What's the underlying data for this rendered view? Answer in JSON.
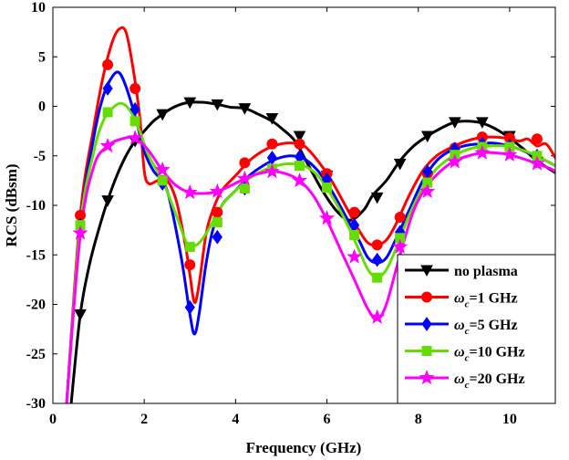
{
  "chart_data": {
    "type": "line",
    "title": "",
    "xlabel": "Frequency (GHz)",
    "ylabel": "RCS (dBsm)",
    "xlim": [
      0,
      11
    ],
    "ylim": [
      -30,
      10
    ],
    "xticks": [
      0,
      2,
      4,
      6,
      8,
      10
    ],
    "yticks": [
      10,
      5,
      0,
      -5,
      -10,
      -15,
      -20,
      -25,
      -30
    ],
    "legend_position": "bottom-right",
    "series": [
      {
        "name": "no plasma",
        "legend_label": "no plasma",
        "color": "#000000",
        "marker": "triangle-down",
        "x": [
          0.4,
          0.6,
          0.8,
          1.0,
          1.2,
          1.4,
          1.6,
          1.8,
          2.0,
          2.2,
          2.4,
          2.6,
          2.8,
          3.0,
          3.3,
          3.6,
          3.9,
          4.2,
          4.5,
          4.8,
          5.0,
          5.3,
          5.6,
          5.9,
          6.2,
          6.5,
          6.8,
          7.0,
          7.3,
          7.6,
          7.9,
          8.2,
          8.5,
          8.8,
          9.1,
          9.4,
          9.7,
          10.0,
          10.3,
          10.6,
          11.0
        ],
        "y": [
          -30,
          -21,
          -16,
          -12.5,
          -9.5,
          -7,
          -5,
          -3.5,
          -2.5,
          -1.5,
          -0.8,
          -0.2,
          0.2,
          0.4,
          0.4,
          0.2,
          -0.1,
          -0.2,
          -0.8,
          -1.5,
          -2.2,
          -3.5,
          -6,
          -8.5,
          -10.5,
          -11.5,
          -10.5,
          -9,
          -7.5,
          -5.5,
          -4,
          -3,
          -2.2,
          -1.6,
          -1.5,
          -1.7,
          -2.3,
          -3.2,
          -4.3,
          -5.5,
          -6.7
        ],
        "marker_x": [
          0.6,
          1.2,
          1.8,
          2.4,
          3.0,
          3.6,
          4.2,
          4.8,
          5.4,
          6.0,
          6.6,
          7.1,
          7.6,
          8.2,
          8.8,
          9.4,
          10.0,
          10.6
        ],
        "marker_y": [
          -21,
          -9.5,
          -3.5,
          -0.8,
          0.4,
          0.2,
          -0.2,
          -1.2,
          -3,
          -7,
          -11,
          -9.2,
          -5.8,
          -3,
          -1.6,
          -1.6,
          -3,
          -5.6
        ]
      },
      {
        "name": "ωc=1 GHz",
        "legend_label": "ω",
        "legend_sub": "c",
        "legend_suffix": "=1 GHz",
        "color": "#ff0000",
        "marker": "circle",
        "x": [
          0.3,
          0.6,
          0.9,
          1.1,
          1.3,
          1.45,
          1.6,
          1.75,
          1.9,
          2.0,
          2.1,
          2.3,
          2.5,
          2.7,
          2.9,
          3.0,
          3.1,
          3.2,
          3.35,
          3.5,
          3.7,
          4.0,
          4.3,
          4.6,
          4.9,
          5.2,
          5.5,
          5.8,
          6.1,
          6.4,
          6.7,
          6.9,
          7.1,
          7.3,
          7.5,
          7.8,
          8.1,
          8.4,
          8.7,
          9.0,
          9.3,
          9.6,
          9.9,
          10.2,
          10.4,
          10.6,
          10.8,
          11.0
        ],
        "y": [
          -30,
          -11,
          -2,
          3,
          6.5,
          7.8,
          7.5,
          4,
          -1,
          -6.5,
          -7.8,
          -7.5,
          -7.5,
          -9.5,
          -14,
          -17,
          -19.8,
          -18,
          -13,
          -10.5,
          -8.5,
          -7,
          -5.5,
          -4.5,
          -3.9,
          -3.7,
          -4,
          -5.5,
          -7.5,
          -10,
          -12.5,
          -13.8,
          -14,
          -13.5,
          -12,
          -9,
          -6.5,
          -5,
          -4.2,
          -3.6,
          -3.2,
          -3.1,
          -3.2,
          -3.5,
          -3.3,
          -4,
          -3.8,
          -5.2
        ],
        "marker_x": [
          0.6,
          1.2,
          1.8,
          2.4,
          3.0,
          3.6,
          4.2,
          4.8,
          5.4,
          6.0,
          6.6,
          7.1,
          7.6,
          8.2,
          8.8,
          9.4,
          10.0,
          10.6
        ],
        "marker_y": [
          -11,
          4.2,
          1.8,
          -7.5,
          -16,
          -10.7,
          -5.7,
          -3.8,
          -3.8,
          -6.8,
          -10.7,
          -14,
          -11.2,
          -6.8,
          -4.2,
          -3.1,
          -3.2,
          -3.3
        ]
      },
      {
        "name": "ωc=5 GHz",
        "legend_label": "ω",
        "legend_sub": "c",
        "legend_suffix": "=5 GHz",
        "color": "#0000ff",
        "marker": "diamond",
        "x": [
          0.3,
          0.6,
          0.9,
          1.1,
          1.3,
          1.45,
          1.6,
          1.8,
          2.0,
          2.2,
          2.5,
          2.8,
          3.0,
          3.1,
          3.2,
          3.35,
          3.5,
          3.7,
          4.0,
          4.3,
          4.6,
          4.9,
          5.2,
          5.5,
          5.8,
          6.1,
          6.4,
          6.7,
          6.9,
          7.1,
          7.3,
          7.5,
          7.8,
          8.1,
          8.4,
          8.7,
          9.0,
          9.3,
          9.6,
          9.9,
          10.2,
          10.5,
          10.8,
          11.0
        ],
        "y": [
          -30,
          -12,
          -3,
          1,
          3,
          3.4,
          2,
          -1,
          -4.5,
          -6.5,
          -8.5,
          -15,
          -21,
          -23,
          -21,
          -16,
          -12.5,
          -10,
          -8.5,
          -7,
          -6,
          -5.3,
          -5,
          -5.3,
          -6.5,
          -8.5,
          -11,
          -13.5,
          -15.3,
          -15.8,
          -15.3,
          -13.5,
          -10.5,
          -7.5,
          -5.5,
          -4.5,
          -4,
          -3.8,
          -3.7,
          -3.9,
          -4.3,
          -4.9,
          -5.5,
          -6
        ],
        "marker_x": [
          0.6,
          1.2,
          1.8,
          2.4,
          3.0,
          3.6,
          4.2,
          4.8,
          5.4,
          6.0,
          6.6,
          7.1,
          7.6,
          8.2,
          8.8,
          9.4,
          10.0,
          10.6
        ],
        "marker_y": [
          -12,
          1.8,
          -0.3,
          -7.8,
          -20.3,
          -13.2,
          -8.3,
          -5.2,
          -5.1,
          -7.4,
          -12,
          -15.5,
          -12.7,
          -6.6,
          -4.3,
          -3.8,
          -4,
          -5
        ]
      },
      {
        "name": "ωc=10 GHz",
        "legend_label": "ω",
        "legend_sub": "c",
        "legend_suffix": "=10 GHz",
        "color": "#66dd00",
        "marker": "square",
        "x": [
          0.3,
          0.6,
          0.9,
          1.1,
          1.3,
          1.5,
          1.7,
          1.9,
          2.1,
          2.4,
          2.7,
          2.9,
          3.0,
          3.2,
          3.4,
          3.7,
          4.0,
          4.3,
          4.6,
          4.9,
          5.2,
          5.5,
          5.8,
          6.1,
          6.4,
          6.7,
          6.9,
          7.1,
          7.3,
          7.5,
          7.8,
          8.1,
          8.4,
          8.7,
          9.0,
          9.3,
          9.6,
          9.9,
          10.2,
          10.5,
          10.8,
          11.0
        ],
        "y": [
          -30,
          -12,
          -4.5,
          -1.5,
          -0.2,
          0.3,
          -0.5,
          -2.5,
          -5,
          -7.5,
          -11,
          -13.5,
          -14.2,
          -13.8,
          -12.5,
          -10,
          -8.5,
          -7.3,
          -6.5,
          -6,
          -5.8,
          -6,
          -7,
          -9,
          -11.5,
          -14.5,
          -16.5,
          -17.3,
          -16.5,
          -14.5,
          -11,
          -8.2,
          -6.3,
          -5.2,
          -4.5,
          -4.1,
          -4,
          -4,
          -4.3,
          -4.8,
          -5.5,
          -6
        ],
        "marker_x": [
          0.6,
          1.2,
          1.8,
          2.4,
          3.0,
          3.6,
          4.2,
          4.8,
          5.4,
          6.0,
          6.6,
          7.1,
          7.6,
          8.2,
          8.8,
          9.4,
          10.0,
          10.6
        ],
        "marker_y": [
          -12,
          -0.6,
          -1.5,
          -7.5,
          -14.2,
          -11.7,
          -8.3,
          -6.3,
          -6,
          -8.2,
          -13,
          -17.3,
          -13.3,
          -7.7,
          -4.9,
          -4.1,
          -4.1,
          -5
        ]
      },
      {
        "name": "ωc=20 GHz",
        "legend_label": "ω",
        "legend_sub": "c",
        "legend_suffix": "=20 GHz",
        "color": "#ff00ff",
        "marker": "star",
        "x": [
          0.3,
          0.6,
          0.9,
          1.2,
          1.5,
          1.8,
          2.1,
          2.4,
          2.7,
          3.0,
          3.3,
          3.6,
          3.9,
          4.2,
          4.5,
          4.8,
          5.1,
          5.4,
          5.7,
          6.0,
          6.3,
          6.6,
          6.9,
          7.1,
          7.3,
          7.6,
          7.9,
          8.2,
          8.5,
          8.8,
          9.1,
          9.4,
          9.7,
          10.0,
          10.3,
          10.6,
          10.9,
          11.0
        ],
        "y": [
          -30,
          -13,
          -6,
          -4,
          -3.3,
          -3.2,
          -4.5,
          -6.5,
          -8,
          -8.7,
          -8.8,
          -8.6,
          -8,
          -7.3,
          -6.8,
          -6.6,
          -6.8,
          -7.5,
          -9,
          -11.5,
          -14.5,
          -17.5,
          -20.5,
          -21.5,
          -20,
          -15,
          -10.5,
          -8,
          -6.5,
          -5.5,
          -5,
          -4.7,
          -4.7,
          -4.9,
          -5.3,
          -5.8,
          -6.3,
          -6.6
        ],
        "marker_x": [
          0.6,
          1.2,
          1.8,
          2.4,
          3.0,
          3.6,
          4.2,
          4.8,
          5.4,
          6.0,
          6.6,
          7.1,
          7.6,
          8.2,
          8.8,
          9.4,
          10.0,
          10.6
        ],
        "marker_y": [
          -12.8,
          -4,
          -3.2,
          -6.4,
          -8.7,
          -8.6,
          -7.3,
          -6.6,
          -7.5,
          -11.3,
          -15.2,
          -21.3,
          -14.2,
          -8.6,
          -5.6,
          -4.7,
          -4.9,
          -5.8
        ]
      }
    ]
  }
}
